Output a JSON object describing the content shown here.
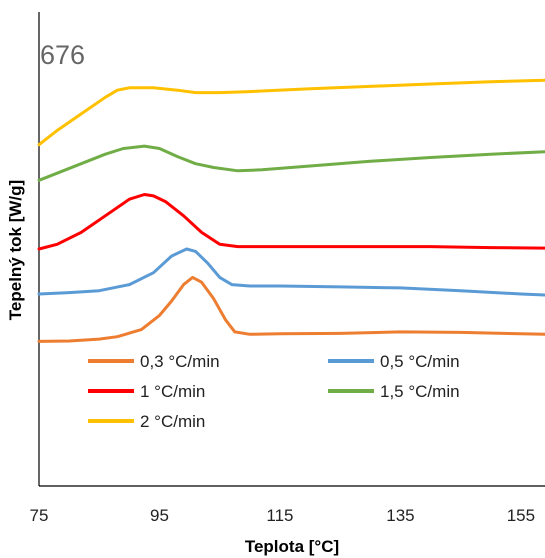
{
  "chart_data": {
    "type": "line",
    "title": "",
    "xlabel": "Teplota [°C]",
    "ylabel": "Tepelný tok [W/g]",
    "xlim": [
      75,
      159
    ],
    "ylim": [
      0,
      1
    ],
    "x_ticks": [
      "75",
      "95",
      "115",
      "135",
      "155"
    ],
    "y_ticks_shown": false,
    "grid": false,
    "annotation": "676",
    "legend_position": "bottom-inside",
    "series": [
      {
        "name": "0,3 °C/min",
        "color": "#ED7D31",
        "points": [
          [
            75,
            0.305
          ],
          [
            80,
            0.306
          ],
          [
            85,
            0.31
          ],
          [
            88,
            0.315
          ],
          [
            92,
            0.33
          ],
          [
            95,
            0.36
          ],
          [
            97,
            0.39
          ],
          [
            99,
            0.425
          ],
          [
            100.5,
            0.44
          ],
          [
            102,
            0.43
          ],
          [
            104,
            0.395
          ],
          [
            106,
            0.35
          ],
          [
            107.5,
            0.325
          ],
          [
            110,
            0.32
          ],
          [
            115,
            0.321
          ],
          [
            125,
            0.322
          ],
          [
            135,
            0.325
          ],
          [
            145,
            0.324
          ],
          [
            155,
            0.321
          ],
          [
            159,
            0.32
          ]
        ]
      },
      {
        "name": "0,5 °C/min",
        "color": "#5B9BD5",
        "points": [
          [
            75,
            0.405
          ],
          [
            80,
            0.408
          ],
          [
            85,
            0.412
          ],
          [
            90,
            0.425
          ],
          [
            94,
            0.45
          ],
          [
            97,
            0.485
          ],
          [
            99.5,
            0.5
          ],
          [
            101,
            0.495
          ],
          [
            103,
            0.47
          ],
          [
            105,
            0.44
          ],
          [
            107,
            0.425
          ],
          [
            110,
            0.422
          ],
          [
            115,
            0.422
          ],
          [
            125,
            0.42
          ],
          [
            135,
            0.418
          ],
          [
            145,
            0.412
          ],
          [
            155,
            0.405
          ],
          [
            159,
            0.403
          ]
        ]
      },
      {
        "name": "1 °C/min",
        "color": "#FF0000",
        "points": [
          [
            75,
            0.5
          ],
          [
            78,
            0.51
          ],
          [
            82,
            0.535
          ],
          [
            86,
            0.57
          ],
          [
            90,
            0.605
          ],
          [
            92.5,
            0.615
          ],
          [
            94,
            0.612
          ],
          [
            96,
            0.6
          ],
          [
            99,
            0.57
          ],
          [
            102,
            0.535
          ],
          [
            105,
            0.51
          ],
          [
            108,
            0.505
          ],
          [
            112,
            0.505
          ],
          [
            120,
            0.505
          ],
          [
            130,
            0.505
          ],
          [
            140,
            0.505
          ],
          [
            150,
            0.503
          ],
          [
            159,
            0.502
          ]
        ]
      },
      {
        "name": "1,5 °C/min",
        "color": "#70AD47",
        "points": [
          [
            75,
            0.645
          ],
          [
            78,
            0.66
          ],
          [
            82,
            0.68
          ],
          [
            86,
            0.7
          ],
          [
            89,
            0.712
          ],
          [
            92.5,
            0.717
          ],
          [
            95,
            0.712
          ],
          [
            98,
            0.695
          ],
          [
            101,
            0.68
          ],
          [
            104,
            0.672
          ],
          [
            108,
            0.665
          ],
          [
            112,
            0.667
          ],
          [
            120,
            0.675
          ],
          [
            130,
            0.685
          ],
          [
            140,
            0.693
          ],
          [
            150,
            0.7
          ],
          [
            159,
            0.705
          ]
        ]
      },
      {
        "name": "2 °C/min",
        "color": "#FFC000",
        "points": [
          [
            75,
            0.72
          ],
          [
            78,
            0.75
          ],
          [
            82,
            0.785
          ],
          [
            86,
            0.82
          ],
          [
            88,
            0.835
          ],
          [
            90,
            0.84
          ],
          [
            94,
            0.84
          ],
          [
            98,
            0.835
          ],
          [
            101,
            0.83
          ],
          [
            105,
            0.83
          ],
          [
            110,
            0.832
          ],
          [
            120,
            0.838
          ],
          [
            130,
            0.843
          ],
          [
            140,
            0.848
          ],
          [
            150,
            0.853
          ],
          [
            159,
            0.856
          ]
        ]
      }
    ]
  }
}
